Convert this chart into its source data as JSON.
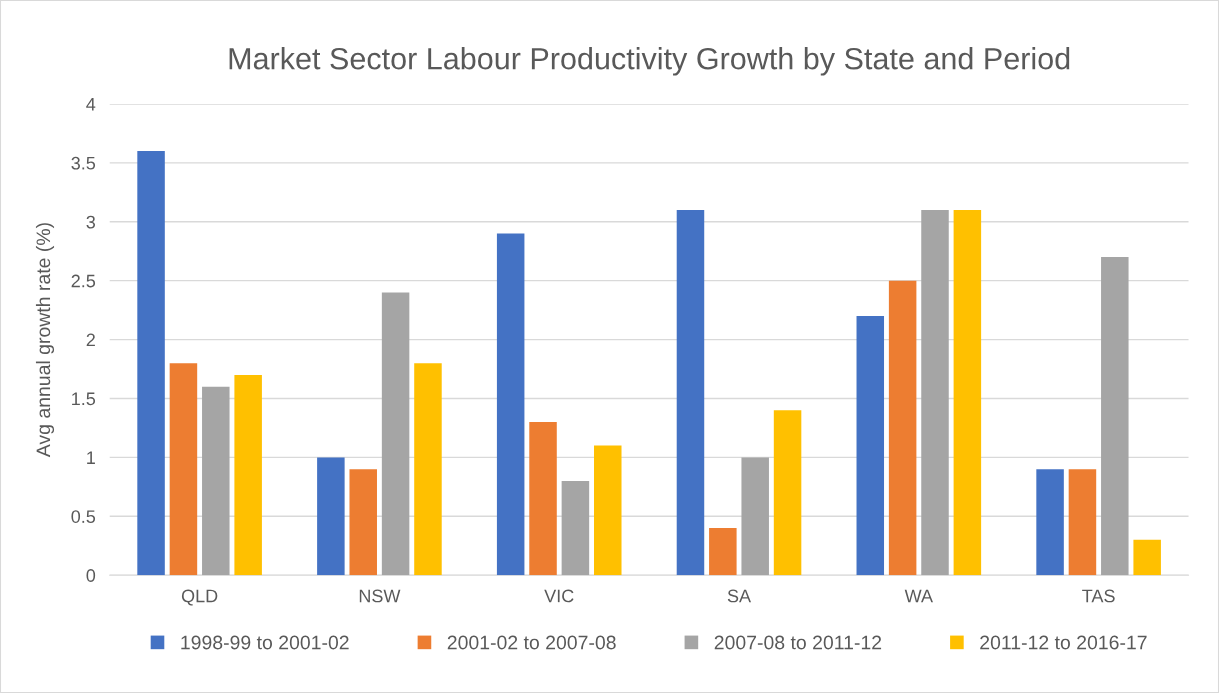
{
  "chart_data": {
    "type": "bar",
    "title": "Market Sector Labour Productivity Growth by State and Period",
    "ylabel": "Avg annual growth rate (%)",
    "categories": [
      "QLD",
      "NSW",
      "VIC",
      "SA",
      "WA",
      "TAS"
    ],
    "series": [
      {
        "name": "1998-99 to 2001-02",
        "color": "#4472c4",
        "values": [
          3.6,
          1.0,
          2.9,
          3.1,
          2.2,
          0.9
        ]
      },
      {
        "name": "2001-02 to 2007-08",
        "color": "#ed7d31",
        "values": [
          1.8,
          0.9,
          1.3,
          0.4,
          2.5,
          0.9
        ]
      },
      {
        "name": "2007-08 to 2011-12",
        "color": "#a5a5a5",
        "values": [
          1.6,
          2.4,
          0.8,
          1.0,
          3.1,
          2.7
        ]
      },
      {
        "name": "2011-12 to 2016-17",
        "color": "#ffc000",
        "values": [
          1.7,
          1.8,
          1.1,
          1.4,
          3.1,
          0.3
        ]
      }
    ],
    "ylim": [
      0,
      4
    ],
    "yticks": [
      0,
      0.5,
      1,
      1.5,
      2,
      2.5,
      3,
      3.5,
      4
    ],
    "grid": "y",
    "legend": "bottom"
  }
}
